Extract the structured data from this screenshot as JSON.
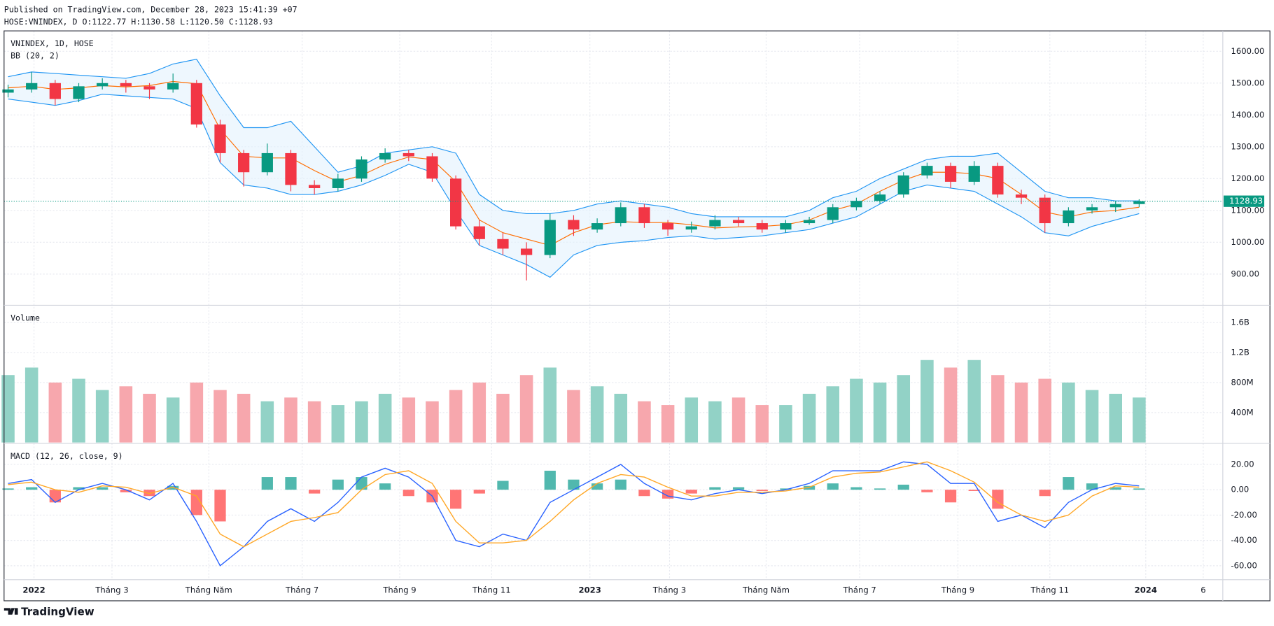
{
  "header": {
    "published": "Published on TradingView.com, December 28, 2023 15:41:39 +07",
    "ohlc": "HOSE:VNINDEX, D O:1122.77 H:1130.58 L:1120.50 C:1128.93"
  },
  "footer": {
    "brand": "TradingView"
  },
  "chart_data": [
    {
      "type": "candlestick",
      "title": "VNINDEX, 1D, HOSE",
      "indicator": "BB (20, 2)",
      "open": [
        1470,
        1480,
        1500,
        1450,
        1490,
        1500,
        1490,
        1480,
        1500,
        1370,
        1280,
        1220,
        1280,
        1180,
        1170,
        1200,
        1260,
        1280,
        1270,
        1200,
        1050,
        1010,
        980,
        960,
        1070,
        1040,
        1060,
        1110,
        1060,
        1040,
        1050,
        1070,
        1060,
        1040,
        1060,
        1070,
        1110,
        1130,
        1150,
        1210,
        1240,
        1190,
        1240,
        1150,
        1140,
        1060,
        1100,
        1110,
        1120
      ],
      "high": [
        1495,
        1535,
        1510,
        1500,
        1515,
        1510,
        1500,
        1530,
        1510,
        1385,
        1290,
        1310,
        1290,
        1195,
        1215,
        1270,
        1295,
        1290,
        1280,
        1210,
        1070,
        1030,
        1000,
        1090,
        1085,
        1075,
        1125,
        1120,
        1070,
        1065,
        1085,
        1080,
        1070,
        1070,
        1080,
        1120,
        1140,
        1160,
        1220,
        1250,
        1250,
        1255,
        1250,
        1165,
        1150,
        1110,
        1120,
        1130,
        1135
      ],
      "low": [
        1455,
        1470,
        1430,
        1440,
        1480,
        1470,
        1450,
        1470,
        1360,
        1250,
        1175,
        1210,
        1160,
        1150,
        1160,
        1190,
        1250,
        1255,
        1190,
        1040,
        990,
        960,
        880,
        950,
        1020,
        1030,
        1050,
        1045,
        1020,
        1030,
        1040,
        1050,
        1030,
        1030,
        1055,
        1060,
        1100,
        1120,
        1140,
        1200,
        1170,
        1180,
        1140,
        1120,
        1030,
        1050,
        1090,
        1095,
        1110
      ],
      "close": [
        1480,
        1500,
        1450,
        1490,
        1500,
        1490,
        1480,
        1500,
        1370,
        1280,
        1220,
        1280,
        1180,
        1170,
        1200,
        1260,
        1280,
        1270,
        1200,
        1050,
        1010,
        980,
        960,
        1070,
        1040,
        1060,
        1110,
        1060,
        1040,
        1050,
        1070,
        1060,
        1040,
        1060,
        1070,
        1110,
        1130,
        1150,
        1210,
        1240,
        1190,
        1240,
        1150,
        1140,
        1060,
        1100,
        1110,
        1120,
        1128.93
      ],
      "bb_upper": [
        1520,
        1535,
        1530,
        1525,
        1520,
        1515,
        1530,
        1560,
        1575,
        1460,
        1360,
        1360,
        1380,
        1300,
        1220,
        1240,
        1280,
        1290,
        1300,
        1280,
        1150,
        1100,
        1090,
        1090,
        1100,
        1120,
        1130,
        1120,
        1110,
        1090,
        1080,
        1080,
        1080,
        1080,
        1100,
        1140,
        1160,
        1200,
        1230,
        1260,
        1270,
        1270,
        1280,
        1220,
        1160,
        1140,
        1140,
        1130,
        1130
      ],
      "bb_basis": [
        1485,
        1490,
        1480,
        1485,
        1492,
        1488,
        1492,
        1505,
        1498,
        1355,
        1270,
        1265,
        1265,
        1225,
        1190,
        1210,
        1245,
        1268,
        1260,
        1190,
        1070,
        1030,
        1010,
        990,
        1030,
        1055,
        1065,
        1062,
        1062,
        1055,
        1045,
        1048,
        1050,
        1055,
        1070,
        1100,
        1120,
        1160,
        1195,
        1220,
        1220,
        1215,
        1200,
        1150,
        1095,
        1080,
        1095,
        1100,
        1110
      ],
      "bb_lower": [
        1450,
        1440,
        1430,
        1445,
        1465,
        1460,
        1455,
        1450,
        1420,
        1250,
        1180,
        1170,
        1150,
        1150,
        1160,
        1180,
        1210,
        1245,
        1220,
        1100,
        990,
        960,
        930,
        890,
        960,
        990,
        1000,
        1005,
        1015,
        1020,
        1010,
        1015,
        1020,
        1030,
        1040,
        1060,
        1080,
        1120,
        1160,
        1180,
        1170,
        1160,
        1120,
        1080,
        1030,
        1020,
        1050,
        1070,
        1090
      ],
      "up_color": "#089981",
      "down_color": "#f23645",
      "bb_band_color": "#2196f3",
      "bb_fill_color": "#e3f2fd",
      "bb_basis_color": "#ff6d00",
      "last_price": 1128.93,
      "xlim": [
        -0.17,
        51.55
      ],
      "ylim": [
        802,
        1664
      ],
      "yticks": [
        {
          "value": 900,
          "label": "900.00"
        },
        {
          "value": 1000,
          "label": "1000.00"
        },
        {
          "value": 1100,
          "label": "1100.00"
        },
        {
          "value": 1200,
          "label": "1200.00"
        },
        {
          "value": 1300,
          "label": "1300.00"
        },
        {
          "value": 1400,
          "label": "1400.00"
        },
        {
          "value": 1500,
          "label": "1500.00"
        },
        {
          "value": 1600,
          "label": "1600.00"
        }
      ],
      "grid": true
    },
    {
      "type": "bar",
      "title": "Volume",
      "values": [
        900000000,
        1000000000,
        800000000,
        850000000,
        700000000,
        750000000,
        650000000,
        600000000,
        800000000,
        700000000,
        650000000,
        550000000,
        600000000,
        550000000,
        500000000,
        550000000,
        650000000,
        600000000,
        550000000,
        700000000,
        800000000,
        650000000,
        900000000,
        1000000000,
        700000000,
        750000000,
        650000000,
        550000000,
        500000000,
        600000000,
        550000000,
        600000000,
        500000000,
        500000000,
        650000000,
        750000000,
        850000000,
        800000000,
        900000000,
        1100000000,
        1000000000,
        1100000000,
        900000000,
        800000000,
        850000000,
        800000000,
        700000000,
        650000000,
        600000000
      ],
      "up_color": "#92d2c6",
      "down_color": "#f7a7ad",
      "xlim": [
        -0.17,
        51.55
      ],
      "ylim": [
        0,
        1820000000
      ],
      "yticks": [
        {
          "value": 400000000,
          "label": "400M"
        },
        {
          "value": 800000000,
          "label": "800M"
        },
        {
          "value": 1200000000,
          "label": "1.2B"
        },
        {
          "value": 1600000000,
          "label": "1.6B"
        }
      ],
      "grid": true
    },
    {
      "type": "macd",
      "title": "MACD (12, 26, close, 9)",
      "macd": [
        5,
        8,
        -10,
        0,
        5,
        0,
        -8,
        5,
        -25,
        -60,
        -45,
        -25,
        -15,
        -25,
        -10,
        10,
        17,
        10,
        -5,
        -40,
        -45,
        -35,
        -40,
        -10,
        0,
        10,
        20,
        5,
        -5,
        -8,
        -3,
        0,
        -3,
        0,
        5,
        15,
        15,
        15,
        22,
        20,
        5,
        5,
        -25,
        -20,
        -30,
        -10,
        0,
        5,
        3
      ],
      "signal": [
        4,
        6,
        0,
        -2,
        3,
        2,
        -3,
        2,
        -5,
        -35,
        -45,
        -35,
        -25,
        -22,
        -18,
        0,
        12,
        15,
        5,
        -25,
        -42,
        -42,
        -40,
        -25,
        -8,
        5,
        12,
        10,
        2,
        -5,
        -5,
        -2,
        -2,
        -1,
        2,
        10,
        13,
        14,
        18,
        22,
        15,
        6,
        -10,
        -20,
        -25,
        -20,
        -5,
        3,
        2
      ],
      "histogram": [
        1,
        2,
        -10,
        2,
        2,
        -2,
        -5,
        3,
        -20,
        -25,
        0,
        10,
        10,
        -3,
        8,
        10,
        5,
        -5,
        -10,
        -15,
        -3,
        7,
        0,
        15,
        8,
        5,
        8,
        -5,
        -7,
        -3,
        2,
        2,
        -1,
        1,
        3,
        5,
        2,
        1,
        4,
        -2,
        -10,
        -1,
        -15,
        0,
        -5,
        10,
        5,
        2,
        1
      ],
      "macd_color": "#2962ff",
      "signal_color": "#ffa726",
      "hist_up_color": "#26a69a",
      "hist_down_color": "#ff5252",
      "xlim": [
        -0.17,
        51.55
      ],
      "ylim": [
        -71,
        36
      ],
      "yticks": [
        {
          "value": -60,
          "label": "-60.00"
        },
        {
          "value": -40,
          "label": "-40.00"
        },
        {
          "value": -20,
          "label": "-20.00"
        },
        {
          "value": 0,
          "label": "0.00"
        },
        {
          "value": 20,
          "label": "20.00"
        }
      ],
      "xticks": [
        {
          "value": 1.1,
          "label": "2022"
        },
        {
          "value": 4.41,
          "label": "Tháng 3"
        },
        {
          "value": 8.52,
          "label": "Tháng Năm"
        },
        {
          "value": 12.48,
          "label": "Tháng 7"
        },
        {
          "value": 16.62,
          "label": "Tháng 9"
        },
        {
          "value": 20.52,
          "label": "Tháng 11"
        },
        {
          "value": 24.69,
          "label": "2023"
        },
        {
          "value": 28.07,
          "label": "Tháng 3"
        },
        {
          "value": 32.17,
          "label": "Tháng Năm"
        },
        {
          "value": 36.14,
          "label": "Tháng 7"
        },
        {
          "value": 40.31,
          "label": "Tháng 9"
        },
        {
          "value": 44.21,
          "label": "Tháng 11"
        },
        {
          "value": 48.28,
          "label": "2024"
        },
        {
          "value": 50.72,
          "label": "6"
        }
      ],
      "grid": true
    }
  ]
}
